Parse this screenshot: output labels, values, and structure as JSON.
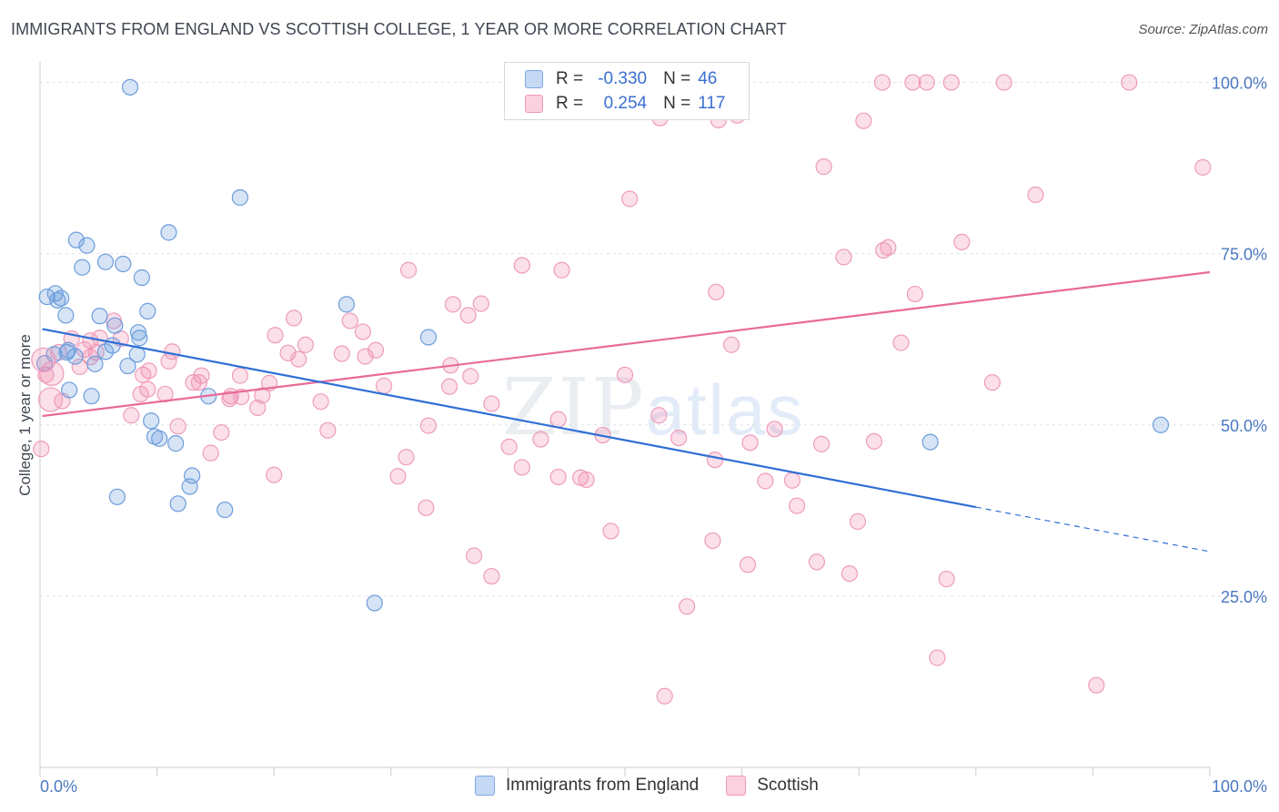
{
  "title": "IMMIGRANTS FROM ENGLAND VS SCOTTISH COLLEGE, 1 YEAR OR MORE CORRELATION CHART",
  "source": "Source: ZipAtlas.com",
  "watermark": {
    "zip": "ZIP",
    "atlas": "atlas"
  },
  "legend_top": {
    "rows": [
      {
        "r_key": "R =",
        "r_val": "-0.330",
        "n_key": "N =",
        "n_val": "46"
      },
      {
        "r_key": "R =",
        "r_val": "0.254",
        "n_key": "N =",
        "n_val": "117"
      }
    ]
  },
  "chart_data": {
    "type": "scatter",
    "title": "IMMIGRANTS FROM ENGLAND VS SCOTTISH COLLEGE, 1 YEAR OR MORE CORRELATION CHART",
    "xlabel": "",
    "ylabel": "College, 1 year or more",
    "xlim": [
      0,
      100
    ],
    "ylim": [
      0,
      103
    ],
    "x_tick_labels": [
      "0.0%",
      "100.0%"
    ],
    "y_ticks": [
      25,
      50,
      75,
      100
    ],
    "y_tick_labels": [
      "25.0%",
      "50.0%",
      "75.0%",
      "100.0%"
    ],
    "grid": true,
    "legend_position": "bottom",
    "colors": {
      "blue": "#6b9fe0",
      "pink": "#f08cb0",
      "blue_line": "#2e6fd6",
      "pink_line": "#e86a9a"
    },
    "series": [
      {
        "name": "Immigrants from England",
        "color": "#6b9fe0",
        "x": [
          7.7,
          17.1,
          1.3,
          1.8,
          0.6,
          3.1,
          3.6,
          8.7,
          11.0,
          4.0,
          5.6,
          7.1,
          2.2,
          1.5,
          6.4,
          5.1,
          8.4,
          8.5,
          5.6,
          6.2,
          4.7,
          2.3,
          3.0,
          4.4,
          2.5,
          8.3,
          26.2,
          33.2,
          10.2,
          9.5,
          9.8,
          12.8,
          13.0,
          11.6,
          14.4,
          6.6,
          11.8,
          15.8,
          28.6,
          76.1,
          0.4,
          1.2,
          2.4,
          7.5,
          9.2,
          95.8
        ],
        "y": [
          99.3,
          83.2,
          69.2,
          68.5,
          68.7,
          77.0,
          73.0,
          71.5,
          78.1,
          76.2,
          73.8,
          73.5,
          66.0,
          68.2,
          64.5,
          65.9,
          63.5,
          62.7,
          60.7,
          61.6,
          58.9,
          60.6,
          60.0,
          54.2,
          55.1,
          60.3,
          67.6,
          62.8,
          48.0,
          50.6,
          48.3,
          41.0,
          42.6,
          47.3,
          54.2,
          39.5,
          38.5,
          37.6,
          24.0,
          47.5,
          59.0,
          60.3,
          60.9,
          58.6,
          66.6,
          50.0
        ],
        "trend": {
          "x": [
            0.2,
            80.0
          ],
          "y": [
            64.0,
            38.0
          ],
          "dashed_to": [
            100.0,
            31.5
          ]
        }
      },
      {
        "name": "Scottish",
        "color": "#f08cb0",
        "x": [
          53.0,
          58.0,
          59.6,
          67.0,
          70.4,
          72.0,
          74.6,
          75.8,
          77.9,
          82.4,
          93.1,
          99.4,
          85.1,
          78.8,
          72.5,
          68.7,
          57.8,
          50.4,
          44.6,
          41.2,
          37.7,
          36.6,
          35.3,
          31.5,
          27.8,
          22.7,
          21.2,
          19.0,
          16.3,
          13.8,
          13.1,
          11.0,
          10.7,
          8.8,
          6.9,
          6.3,
          5.1,
          4.3,
          4.3,
          3.4,
          1.6,
          0.5,
          0.1,
          1.9,
          2.7,
          3.8,
          4.8,
          8.6,
          9.2,
          11.8,
          14.6,
          15.5,
          16.2,
          17.1,
          18.6,
          19.6,
          20.1,
          22.1,
          24.0,
          25.8,
          27.6,
          29.4,
          31.3,
          33.2,
          35.0,
          36.8,
          38.6,
          40.1,
          42.8,
          44.3,
          46.2,
          48.1,
          50.0,
          52.9,
          54.6,
          57.7,
          59.1,
          60.7,
          62.8,
          64.7,
          66.8,
          69.9,
          71.3,
          73.6,
          81.4,
          90.3,
          77.5,
          76.7,
          74.8,
          72.1,
          69.2,
          66.4,
          64.3,
          62.0,
          60.5,
          57.5,
          55.3,
          53.4,
          48.8,
          46.7,
          44.3,
          41.2,
          38.6,
          37.1,
          35.1,
          33.0,
          30.6,
          28.7,
          26.5,
          24.6,
          21.7,
          20.0,
          17.2,
          13.6,
          11.3,
          9.3,
          7.8
        ],
        "y": [
          94.8,
          94.5,
          95.2,
          87.7,
          94.4,
          100.0,
          100.0,
          100.0,
          100.0,
          100.0,
          100.0,
          87.6,
          83.6,
          76.7,
          75.9,
          74.5,
          69.4,
          83.0,
          72.6,
          73.3,
          67.7,
          66.0,
          67.6,
          72.6,
          60.0,
          61.7,
          60.5,
          54.3,
          54.2,
          57.2,
          56.2,
          59.3,
          54.5,
          57.3,
          62.6,
          65.2,
          62.7,
          62.3,
          59.9,
          58.5,
          60.6,
          57.3,
          46.5,
          53.5,
          62.6,
          61.0,
          60.6,
          54.5,
          55.2,
          49.8,
          45.9,
          48.9,
          53.8,
          57.2,
          52.5,
          56.1,
          63.1,
          59.6,
          53.4,
          60.4,
          63.6,
          55.7,
          45.3,
          49.9,
          55.6,
          57.1,
          53.1,
          46.8,
          47.9,
          50.8,
          42.3,
          48.5,
          57.3,
          51.4,
          48.1,
          44.9,
          61.7,
          47.4,
          49.4,
          38.2,
          47.2,
          35.9,
          47.6,
          62.0,
          56.2,
          12.0,
          27.5,
          16.0,
          69.1,
          75.5,
          28.3,
          30.0,
          41.9,
          41.8,
          29.6,
          33.1,
          23.5,
          10.4,
          34.5,
          42.0,
          42.4,
          43.8,
          27.9,
          30.9,
          58.7,
          37.9,
          42.5,
          60.9,
          65.2,
          49.2,
          65.6,
          42.7,
          54.1,
          56.2,
          60.7,
          57.9,
          51.4
        ],
        "trend": {
          "x": [
            0.2,
            100.0
          ],
          "y": [
            51.3,
            72.3
          ]
        }
      }
    ]
  },
  "legend_bottom": [
    {
      "label": "Immigrants from England"
    },
    {
      "label": "Scottish"
    }
  ]
}
